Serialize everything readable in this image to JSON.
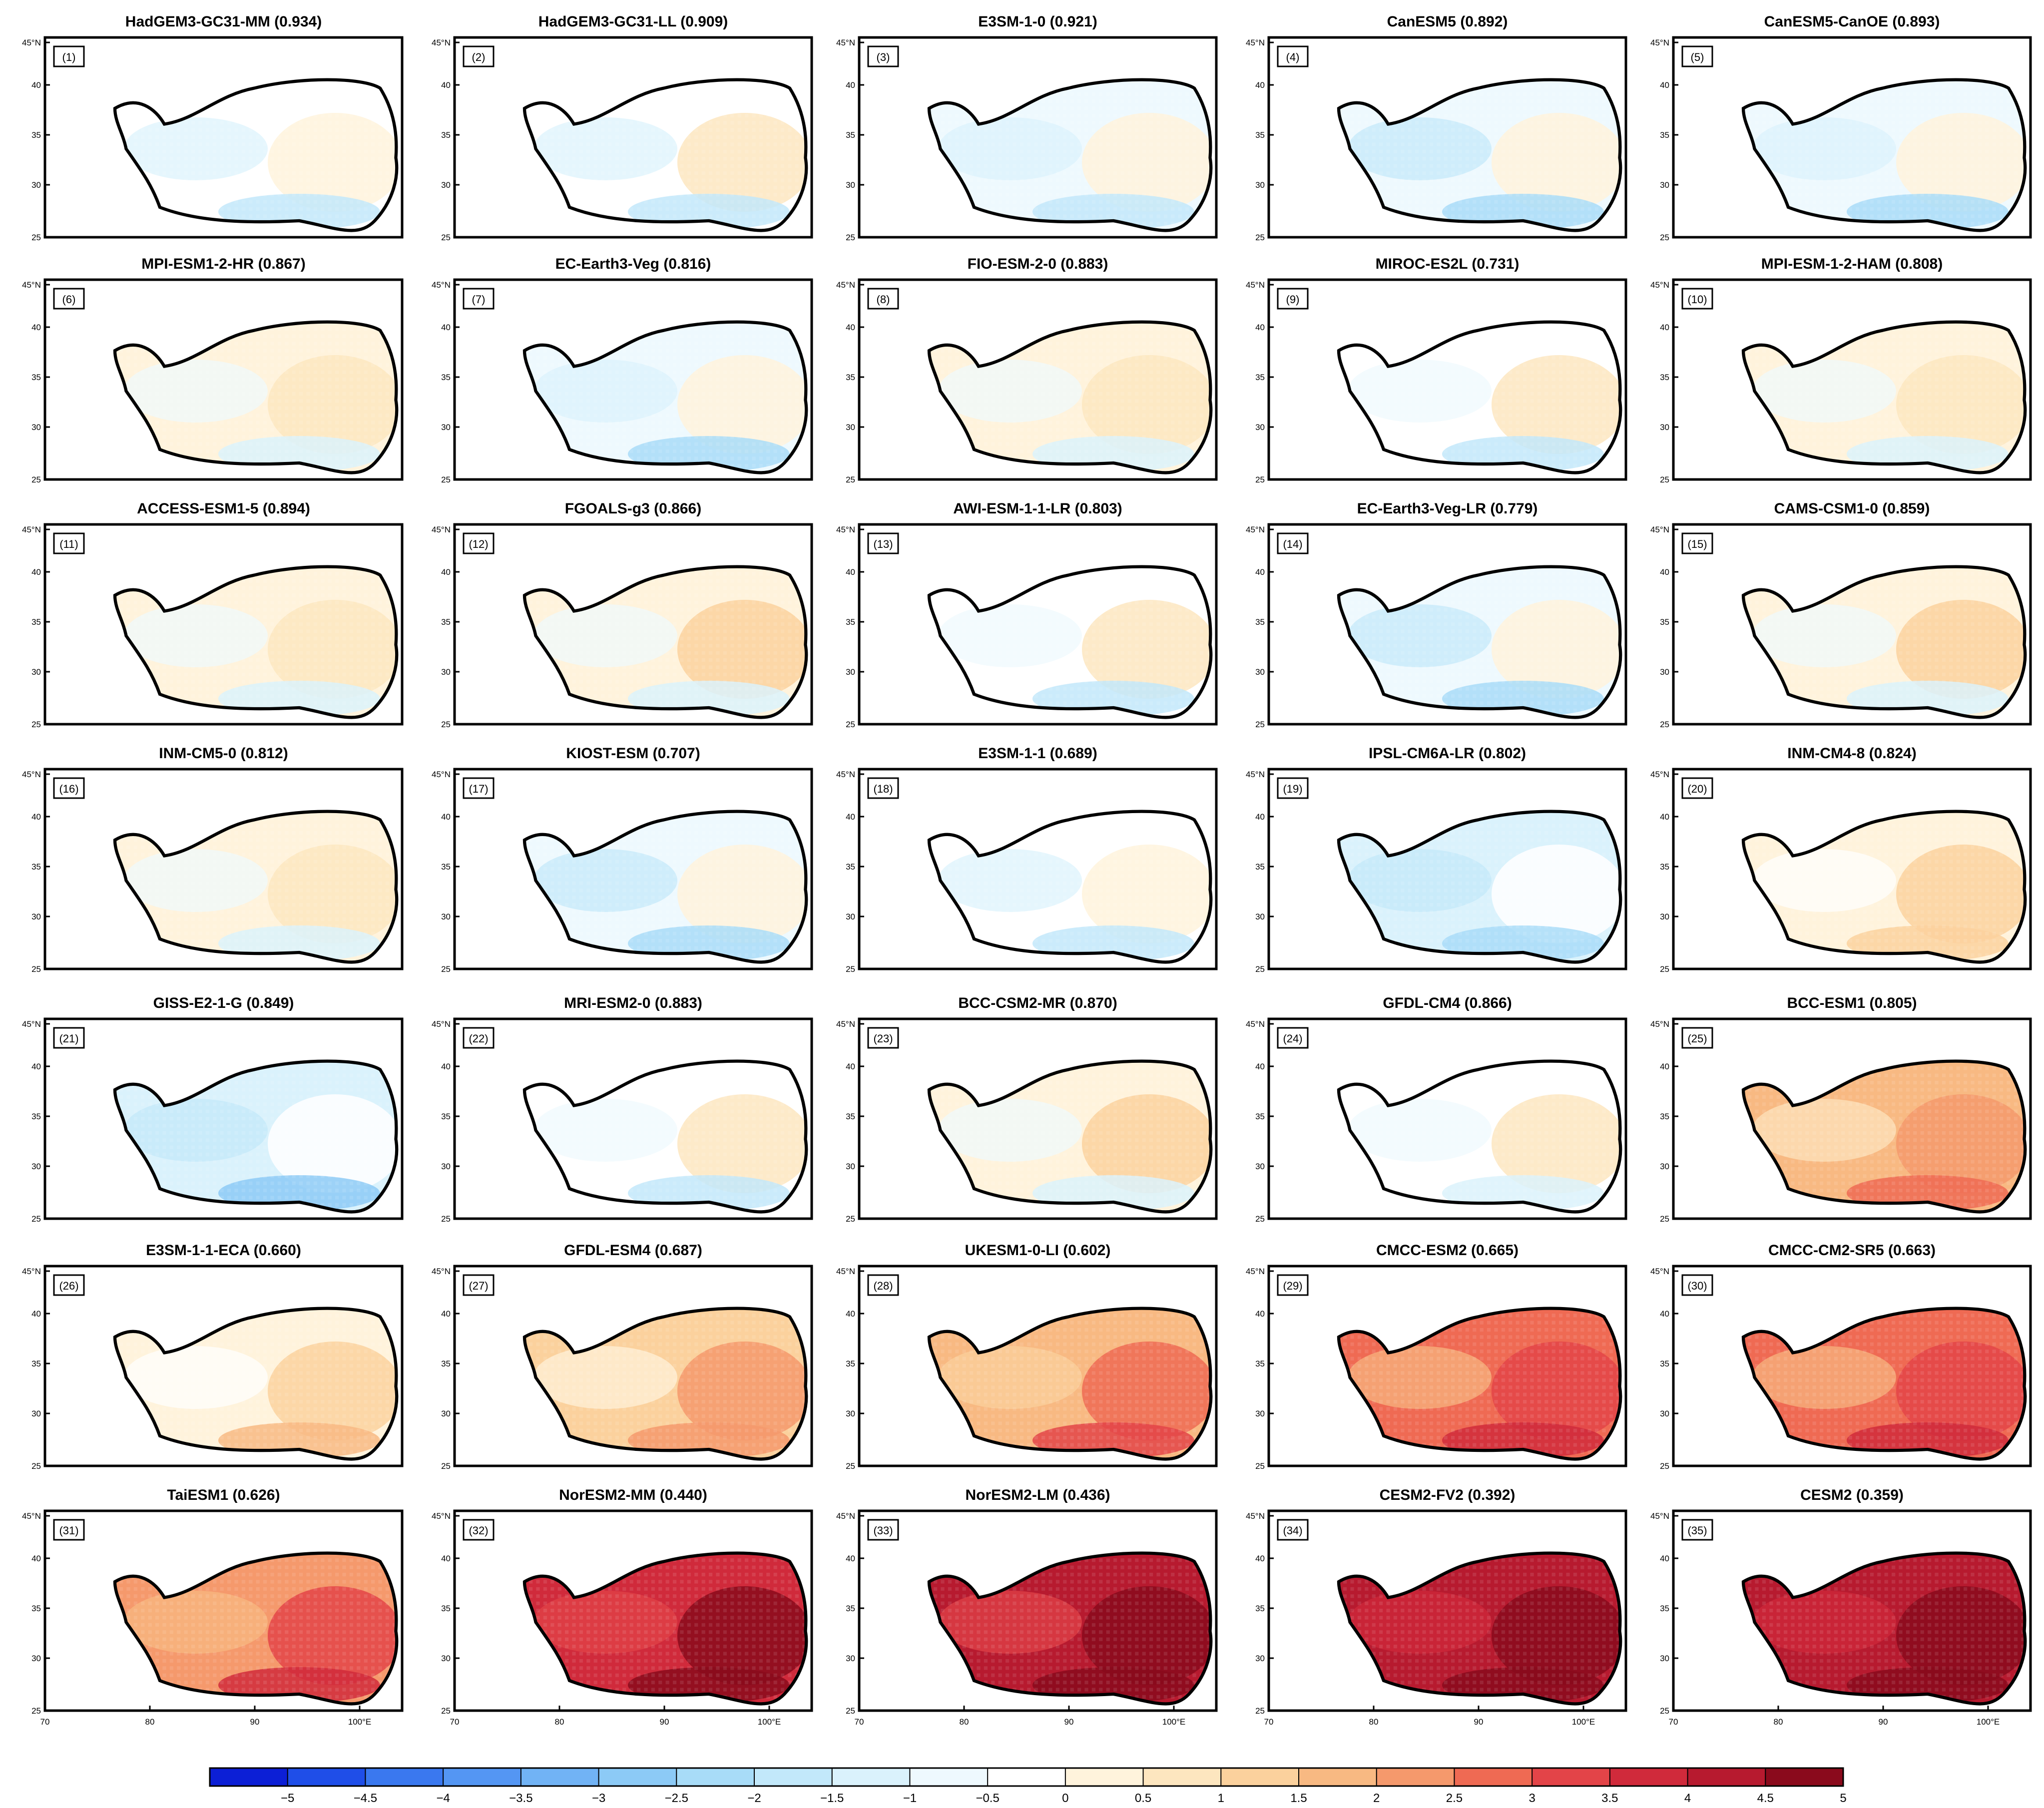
{
  "figure": {
    "lat_labels": [
      "45°N",
      "40",
      "35",
      "30",
      "25"
    ],
    "lon_labels": [
      "70",
      "80",
      "90",
      "100°E"
    ]
  },
  "panels": [
    {
      "index": "(1)",
      "title": "HadGEM3-GC31-MM (0.934)",
      "bias_level": -0.2
    },
    {
      "index": "(2)",
      "title": "HadGEM3-GC31-LL (0.909)",
      "bias_level": -0.1
    },
    {
      "index": "(3)",
      "title": "E3SM-1-0 (0.921)",
      "bias_level": -0.3
    },
    {
      "index": "(4)",
      "title": "CanESM5 (0.892)",
      "bias_level": -0.6
    },
    {
      "index": "(5)",
      "title": "CanESM5-CanOE (0.893)",
      "bias_level": -0.5
    },
    {
      "index": "(6)",
      "title": "MPI-ESM1-2-HR (0.867)",
      "bias_level": 0.3
    },
    {
      "index": "(7)",
      "title": "EC-Earth3-Veg (0.816)",
      "bias_level": -0.4
    },
    {
      "index": "(8)",
      "title": "FIO-ESM-2-0 (0.883)",
      "bias_level": 0.3
    },
    {
      "index": "(9)",
      "title": "MIROC-ES2L (0.731)",
      "bias_level": 0.0
    },
    {
      "index": "(10)",
      "title": "MPI-ESM-1-2-HAM (0.808)",
      "bias_level": 0.3
    },
    {
      "index": "(11)",
      "title": "ACCESS-ESM1-5 (0.894)",
      "bias_level": 0.3
    },
    {
      "index": "(12)",
      "title": "FGOALS-g3 (0.866)",
      "bias_level": 0.4
    },
    {
      "index": "(13)",
      "title": "AWI-ESM-1-1-LR  (0.803)",
      "bias_level": 0.1
    },
    {
      "index": "(14)",
      "title": "EC-Earth3-Veg-LR (0.779)",
      "bias_level": -0.6
    },
    {
      "index": "(15)",
      "title": "CAMS-CSM1-0 (0.859)",
      "bias_level": 0.4
    },
    {
      "index": "(16)",
      "title": "INM-CM5-0 (0.812)",
      "bias_level": 0.3
    },
    {
      "index": "(17)",
      "title": "KIOST-ESM (0.707)",
      "bias_level": -0.6
    },
    {
      "index": "(18)",
      "title": "E3SM-1-1 (0.689)",
      "bias_level": -0.2
    },
    {
      "index": "(19)",
      "title": "IPSL-CM6A-LR (0.802)",
      "bias_level": -0.8
    },
    {
      "index": "(20)",
      "title": "INM-CM4-8 (0.824)",
      "bias_level": 0.5
    },
    {
      "index": "(21)",
      "title": "GISS-E2-1-G (0.849)",
      "bias_level": -0.9
    },
    {
      "index": "(22)",
      "title": "MRI-ESM2-0 (0.883)",
      "bias_level": 0.1
    },
    {
      "index": "(23)",
      "title": "BCC-CSM2-MR (0.870)",
      "bias_level": 0.4
    },
    {
      "index": "(24)",
      "title": "GFDL-CM4 (0.866)",
      "bias_level": 0.2
    },
    {
      "index": "(25)",
      "title": "BCC-ESM1 (0.805)",
      "bias_level": 1.8
    },
    {
      "index": "(26)",
      "title": "E3SM-1-1-ECA (0.660)",
      "bias_level": 0.6
    },
    {
      "index": "(27)",
      "title": "GFDL-ESM4 (0.687)",
      "bias_level": 1.4
    },
    {
      "index": "(28)",
      "title": "UKESM1-0-LI (0.602)",
      "bias_level": 2.2
    },
    {
      "index": "(29)",
      "title": "CMCC-ESM2 (0.665)",
      "bias_level": 2.8
    },
    {
      "index": "(30)",
      "title": "CMCC-CM2-SR5 (0.663)",
      "bias_level": 2.8
    },
    {
      "index": "(31)",
      "title": "TaiESM1 (0.626)",
      "bias_level": 2.6
    },
    {
      "index": "(32)",
      "title": "NorESM2-MM (0.440)",
      "bias_level": 4.2
    },
    {
      "index": "(33)",
      "title": "NorESM2-LM (0.436)",
      "bias_level": 4.4
    },
    {
      "index": "(34)",
      "title": "CESM2-FV2 (0.392)",
      "bias_level": 4.7
    },
    {
      "index": "(35)",
      "title": "CESM2 (0.359)",
      "bias_level": 4.6
    }
  ],
  "colorbar": {
    "labels": [
      "-5",
      "-4.5",
      "-4",
      "-3.5",
      "-3",
      "-2.5",
      "-2",
      "-1.5",
      "-1",
      "-0.5",
      "0",
      "0.5",
      "1",
      "1.5",
      "2",
      "2.5",
      "3",
      "3.5",
      "4",
      "4.5",
      "5"
    ],
    "colors": [
      "#0c1fd6",
      "#1f4ee8",
      "#3a78ef",
      "#5496f3",
      "#71b3f5",
      "#8ccaf6",
      "#a8dcf8",
      "#c2e8fa",
      "#daf2fc",
      "#eef9fe",
      "#ffffff",
      "#fff3dc",
      "#fde6bf",
      "#fbd19d",
      "#f8b982",
      "#f5996c",
      "#ef6a53",
      "#e34448",
      "#d02a3b",
      "#b71a2f",
      "#8a0a1c"
    ]
  }
}
